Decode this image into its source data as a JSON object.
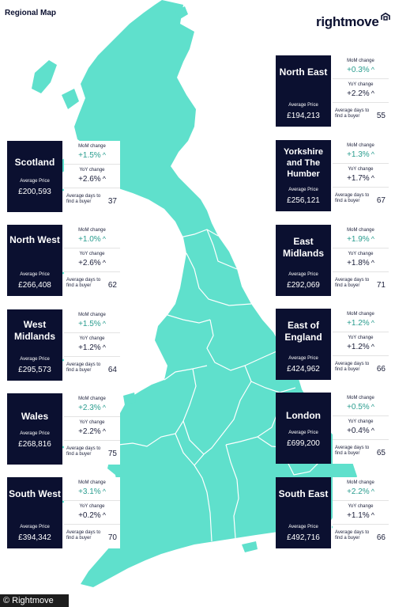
{
  "header": {
    "map_title": "Regional Map",
    "logo_text": "rightmove"
  },
  "colors": {
    "navy": "#0b1030",
    "map_teal": "#5fe0cc",
    "border": "#ffffff",
    "up_arrow_teal": "#2a9d8f"
  },
  "icons": {
    "trend": "chevron-up-icon",
    "logo": "house-roof-icon"
  },
  "labels": {
    "mom": "MoM change",
    "yoy": "YoY change",
    "avg_price": "Average Price",
    "days": "Average days to find a buyer"
  },
  "regions": [
    {
      "name": "North East",
      "avg_price": "£194,213",
      "mom": "+0.3%",
      "yoy": "+2.2%",
      "days": "55"
    },
    {
      "name": "Yorkshire and The Humber",
      "avg_price": "£256,121",
      "mom": "+1.3%",
      "yoy": "+1.7%",
      "days": "67"
    },
    {
      "name": "East Midlands",
      "avg_price": "£292,069",
      "mom": "+1.9%",
      "yoy": "+1.8%",
      "days": "71"
    },
    {
      "name": "East of England",
      "avg_price": "£424,962",
      "mom": "+1.2%",
      "yoy": "+1.2%",
      "days": "66"
    },
    {
      "name": "London",
      "avg_price": "£699,200",
      "mom": "+0.5%",
      "yoy": "+0.4%",
      "days": "65"
    },
    {
      "name": "South East",
      "avg_price": "£492,716",
      "mom": "+2.2%",
      "yoy": "+1.1%",
      "days": "66"
    },
    {
      "name": "Scotland",
      "avg_price": "£200,593",
      "mom": "+1.5%",
      "yoy": "+2.6%",
      "days": "37"
    },
    {
      "name": "North West",
      "avg_price": "£266,408",
      "mom": "+1.0%",
      "yoy": "+2.6%",
      "days": "62"
    },
    {
      "name": "West Midlands",
      "avg_price": "£295,573",
      "mom": "+1.5%",
      "yoy": "+1.2%",
      "days": "64"
    },
    {
      "name": "Wales",
      "avg_price": "£268,816",
      "mom": "+2.3%",
      "yoy": "+2.2%",
      "days": "75"
    },
    {
      "name": "South West",
      "avg_price": "£394,342",
      "mom": "+3.1%",
      "yoy": "+0.2%",
      "days": "70"
    }
  ],
  "footer": {
    "copyright": "© Rightmove"
  }
}
